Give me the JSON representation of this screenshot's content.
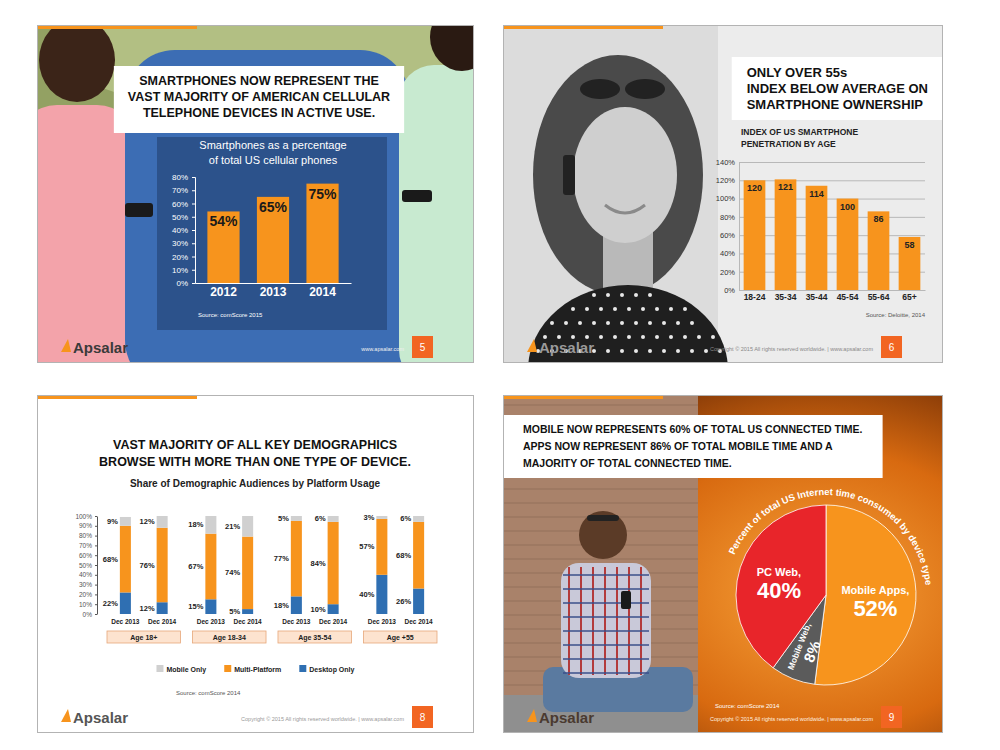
{
  "chart_data": [
    {
      "type": "bar",
      "title": [
        "SMARTPHONES NOW REPRESENT THE",
        "VAST MAJORITY OF AMERICAN CELLULAR",
        "TELEPHONE DEVICES IN ACTIVE USE."
      ],
      "subtitle": [
        "Smartphones as a percentage",
        "of total US cellular phones"
      ],
      "categories": [
        "2012",
        "2013",
        "2014"
      ],
      "values": [
        54,
        65,
        75
      ],
      "value_labels": [
        "54%",
        "65%",
        "75%"
      ],
      "data_labels": true,
      "color": "#f7941d",
      "ylim": [
        0,
        80
      ],
      "yticks": [
        {
          "value": 0,
          "label": "0%"
        },
        {
          "value": 10,
          "label": "10%"
        },
        {
          "value": 20,
          "label": "20%"
        },
        {
          "value": 30,
          "label": "30%"
        },
        {
          "value": 40,
          "label": "40%"
        },
        {
          "value": 50,
          "label": "50%"
        },
        {
          "value": 60,
          "label": "60%"
        },
        {
          "value": 70,
          "label": "70%"
        },
        {
          "value": 80,
          "label": "80%"
        }
      ],
      "grid": false,
      "source": "Source: comScore 2015",
      "brand": "Apsalar",
      "footer": "www.apsalar.com",
      "page": "5"
    },
    {
      "type": "bar",
      "title": [
        "ONLY OVER 55s",
        "INDEX BELOW AVERAGE ON",
        "SMARTPHONE OWNERSHIP"
      ],
      "subtitle": [
        "INDEX OF US SMARTPHONE",
        "PENETRATION BY AGE"
      ],
      "categories": [
        "18-24",
        "35-34",
        "35-44",
        "45-54",
        "55-64",
        "65+"
      ],
      "values": [
        120,
        121,
        114,
        100,
        86,
        58
      ],
      "data_labels": true,
      "color": "#f7941d",
      "ylim": [
        0,
        140
      ],
      "yticks": [
        {
          "value": 0,
          "label": "0%"
        },
        {
          "value": 20,
          "label": "20%"
        },
        {
          "value": 40,
          "label": "40%"
        },
        {
          "value": 60,
          "label": "60%"
        },
        {
          "value": 80,
          "label": "80%"
        },
        {
          "value": 100,
          "label": "100%"
        },
        {
          "value": 120,
          "label": "120%"
        },
        {
          "value": 140,
          "label": "140%"
        }
      ],
      "grid": true,
      "source": "Source: Deloitte, 2014",
      "brand": "Apsalar",
      "footer": "Copyright © 2015 All rights reserved worldwide. | www.apsalar.com",
      "page": "6"
    },
    {
      "type": "bar",
      "stacked": true,
      "title": [
        "VAST MAJORITY OF ALL KEY DEMOGRAPHICS",
        "BROWSE WITH MORE THAN ONE TYPE OF DEVICE."
      ],
      "subtitle": [
        "Share of Demographic Audiences by Platform Usage"
      ],
      "categories": [
        "Dec 2013",
        "Dec 2014",
        "Dec 2013",
        "Dec 2014",
        "Dec 2013",
        "Dec 2014",
        "Dec 2013",
        "Dec 2014"
      ],
      "groups": [
        "Age 18+",
        "Age 18-34",
        "Age 35-54",
        "Age +55"
      ],
      "series": [
        {
          "name": "Mobile Only",
          "color": "#d0d0d0",
          "values": [
            9,
            12,
            18,
            21,
            5,
            6,
            3,
            6
          ],
          "value_labels": [
            "9%",
            "12%",
            "18%",
            "21%",
            "5%",
            "6%",
            "3%",
            "6%"
          ]
        },
        {
          "name": "Multi-Platform",
          "color": "#f7941d",
          "values": [
            68,
            76,
            67,
            74,
            77,
            84,
            57,
            68
          ],
          "value_labels": [
            "68%",
            "76%",
            "67%",
            "74%",
            "77%",
            "84%",
            "57%",
            "68%"
          ]
        },
        {
          "name": "Desktop Only",
          "color": "#2f6fb2",
          "values": [
            22,
            12,
            15,
            5,
            18,
            10,
            40,
            26
          ],
          "value_labels": [
            "22%",
            "12%",
            "15%",
            "5%",
            "18%",
            "10%",
            "40%",
            "26%"
          ]
        }
      ],
      "data_labels": true,
      "ylim": [
        0,
        100
      ],
      "yticks": [
        {
          "value": 0,
          "label": "0%"
        },
        {
          "value": 10,
          "label": "10%"
        },
        {
          "value": 20,
          "label": "20%"
        },
        {
          "value": 30,
          "label": "30%"
        },
        {
          "value": 40,
          "label": "40%"
        },
        {
          "value": 50,
          "label": "50%"
        },
        {
          "value": 60,
          "label": "60%"
        },
        {
          "value": 70,
          "label": "70%"
        },
        {
          "value": 80,
          "label": "80%"
        },
        {
          "value": 90,
          "label": "90%"
        },
        {
          "value": 100,
          "label": "100%"
        }
      ],
      "grid": false,
      "legend": "bottom",
      "source": "Source: comScore 2014",
      "brand": "Apsalar",
      "footer": "Copyright © 2015 All rights reserved worldwide. | www.apsalar.com",
      "page": "8"
    },
    {
      "type": "pie",
      "title": [
        "MOBILE NOW REPRESENTS 60% OF TOTAL US CONNECTED TIME.",
        "APPS NOW REPRESENT 86% OF TOTAL MOBILE TIME AND A",
        "MAJORITY OF TOTAL CONNECTED TIME."
      ],
      "annotations": [
        "Percent of total US Internet time consumed by device type"
      ],
      "categories": [
        "Mobile Apps,",
        "Mobile Web,",
        "PC Web,"
      ],
      "values": [
        52,
        8,
        40
      ],
      "value_labels": [
        "52%",
        "8%",
        "40%"
      ],
      "colors": [
        "#f7941d",
        "#5b5b5b",
        "#e8252a"
      ],
      "data_labels": true,
      "source": "Source: comScore 2014",
      "brand": "Apsalar",
      "footer": "Copyright © 2015 All rights reserved worldwide. | www.apsalar.com",
      "page": "9"
    }
  ]
}
